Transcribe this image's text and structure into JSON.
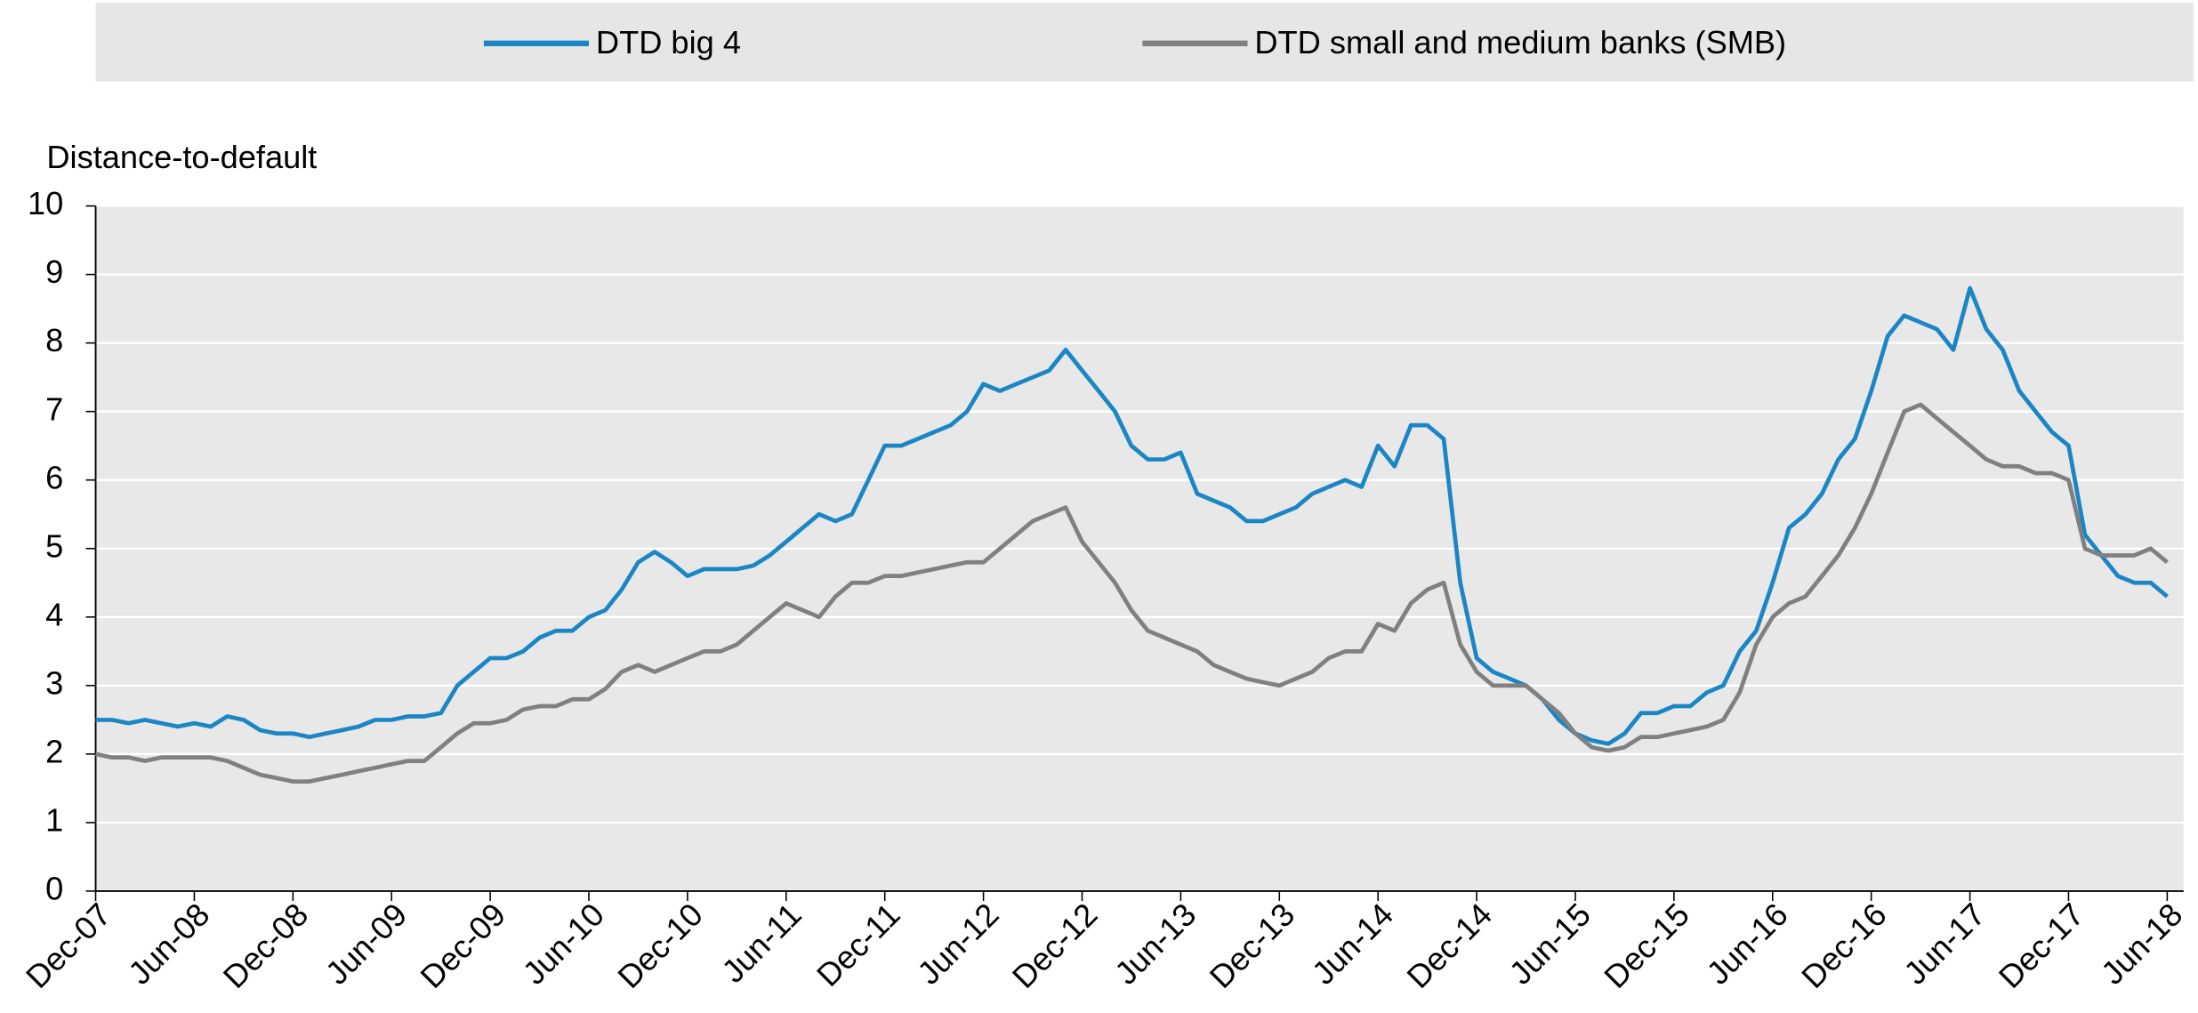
{
  "chart_data": {
    "type": "line",
    "yaxis_label": "Distance-to-default",
    "categories": [
      "Dec-07",
      null,
      null,
      null,
      null,
      null,
      "Jun-08",
      null,
      null,
      null,
      null,
      null,
      "Dec-08",
      null,
      null,
      null,
      null,
      null,
      "Jun-09",
      null,
      null,
      null,
      null,
      null,
      "Dec-09",
      null,
      null,
      null,
      null,
      null,
      "Jun-10",
      null,
      null,
      null,
      null,
      null,
      "Dec-10",
      null,
      null,
      null,
      null,
      null,
      "Jun-11",
      null,
      null,
      null,
      null,
      null,
      "Dec-11",
      null,
      null,
      null,
      null,
      null,
      "Jun-12",
      null,
      null,
      null,
      null,
      null,
      "Dec-12",
      null,
      null,
      null,
      null,
      null,
      "Jun-13",
      null,
      null,
      null,
      null,
      null,
      "Dec-13",
      null,
      null,
      null,
      null,
      null,
      "Jun-14",
      null,
      null,
      null,
      null,
      null,
      "Dec-14",
      null,
      null,
      null,
      null,
      null,
      "Jun-15",
      null,
      null,
      null,
      null,
      null,
      "Dec-15",
      null,
      null,
      null,
      null,
      null,
      "Jun-16",
      null,
      null,
      null,
      null,
      null,
      "Dec-16",
      null,
      null,
      null,
      null,
      null,
      "Jun-17",
      null,
      null,
      null,
      null,
      null,
      "Dec-17",
      null,
      null,
      null,
      null,
      null,
      "Jun-18"
    ],
    "series": [
      {
        "name": "DTD big 4",
        "color": "#1b86c5",
        "values": [
          2.5,
          2.5,
          2.45,
          2.5,
          2.45,
          2.4,
          2.45,
          2.4,
          2.55,
          2.5,
          2.35,
          2.3,
          2.3,
          2.25,
          2.3,
          2.35,
          2.4,
          2.5,
          2.5,
          2.55,
          2.55,
          2.6,
          3.0,
          3.2,
          3.4,
          3.4,
          3.5,
          3.7,
          3.8,
          3.8,
          4.0,
          4.1,
          4.4,
          4.8,
          4.95,
          4.8,
          4.6,
          4.7,
          4.7,
          4.7,
          4.75,
          4.9,
          5.1,
          5.3,
          5.5,
          5.4,
          5.5,
          6.0,
          6.5,
          6.5,
          6.6,
          6.7,
          6.8,
          7.0,
          7.4,
          7.3,
          7.4,
          7.5,
          7.6,
          7.9,
          7.6,
          7.3,
          7.0,
          6.5,
          6.3,
          6.3,
          6.4,
          5.8,
          5.7,
          5.6,
          5.4,
          5.4,
          5.5,
          5.6,
          5.8,
          5.9,
          6.0,
          5.9,
          6.5,
          6.2,
          6.8,
          6.8,
          6.6,
          4.5,
          3.4,
          3.2,
          3.1,
          3.0,
          2.8,
          2.5,
          2.3,
          2.2,
          2.15,
          2.3,
          2.6,
          2.6,
          2.7,
          2.7,
          2.9,
          3.0,
          3.5,
          3.8,
          4.5,
          5.3,
          5.5,
          5.8,
          6.3,
          6.6,
          7.3,
          8.1,
          8.4,
          8.3,
          8.2,
          7.9,
          8.8,
          8.2,
          7.9,
          7.3,
          7.0,
          6.7,
          6.5,
          5.2,
          4.9,
          4.6,
          4.5,
          4.5,
          4.3
        ]
      },
      {
        "name": "DTD small and medium banks (SMB)",
        "color": "#808080",
        "values": [
          2.0,
          1.95,
          1.95,
          1.9,
          1.95,
          1.95,
          1.95,
          1.95,
          1.9,
          1.8,
          1.7,
          1.65,
          1.6,
          1.6,
          1.65,
          1.7,
          1.75,
          1.8,
          1.85,
          1.9,
          1.9,
          2.1,
          2.3,
          2.45,
          2.45,
          2.5,
          2.65,
          2.7,
          2.7,
          2.8,
          2.8,
          2.95,
          3.2,
          3.3,
          3.2,
          3.3,
          3.4,
          3.5,
          3.5,
          3.6,
          3.8,
          4.0,
          4.2,
          4.1,
          4.0,
          4.3,
          4.5,
          4.5,
          4.6,
          4.6,
          4.65,
          4.7,
          4.75,
          4.8,
          4.8,
          5.0,
          5.2,
          5.4,
          5.5,
          5.6,
          5.1,
          4.8,
          4.5,
          4.1,
          3.8,
          3.7,
          3.6,
          3.5,
          3.3,
          3.2,
          3.1,
          3.05,
          3.0,
          3.1,
          3.2,
          3.4,
          3.5,
          3.5,
          3.9,
          3.8,
          4.2,
          4.4,
          4.5,
          3.6,
          3.2,
          3.0,
          3.0,
          3.0,
          2.8,
          2.6,
          2.3,
          2.1,
          2.05,
          2.1,
          2.25,
          2.25,
          2.3,
          2.35,
          2.4,
          2.5,
          2.9,
          3.6,
          4.0,
          4.2,
          4.3,
          4.6,
          4.9,
          5.3,
          5.8,
          6.4,
          7.0,
          7.1,
          6.9,
          6.7,
          6.5,
          6.3,
          6.2,
          6.2,
          6.1,
          6.1,
          6.0,
          5.0,
          4.9,
          4.9,
          4.9,
          5.0,
          4.8
        ]
      }
    ],
    "ylim": [
      0,
      10
    ],
    "yticks": [
      0,
      1,
      2,
      3,
      4,
      5,
      6,
      7,
      8,
      9,
      10
    ],
    "grid": true,
    "legend": "top"
  }
}
